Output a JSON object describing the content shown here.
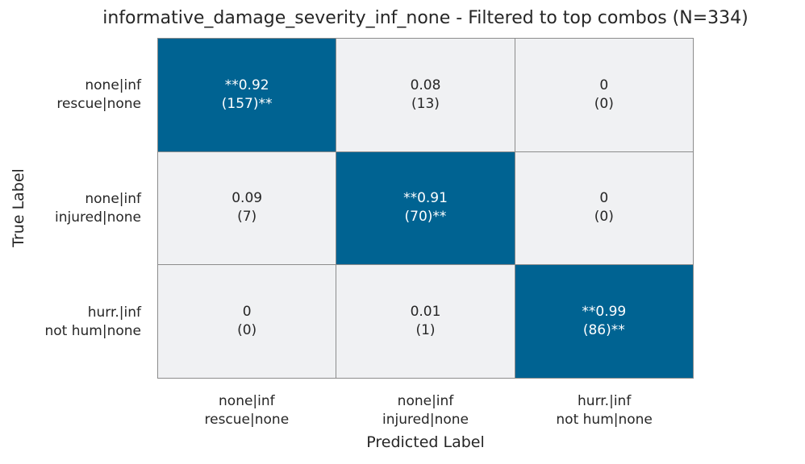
{
  "chart_data": {
    "type": "heatmap",
    "title": "informative_damage_severity_inf_none - Filtered to top combos (N=334)",
    "xlabel": "Predicted Label",
    "ylabel": "True Label",
    "row_labels": [
      [
        "none|inf",
        "rescue|none"
      ],
      [
        "none|inf",
        "injured|none"
      ],
      [
        "hurr.|inf",
        "not hum|none"
      ]
    ],
    "col_labels": [
      [
        "none|inf",
        "rescue|none"
      ],
      [
        "none|inf",
        "injured|none"
      ],
      [
        "hurr.|inf",
        "not hum|none"
      ]
    ],
    "cells": [
      [
        {
          "value": 0.92,
          "count": 157,
          "line1": "**0.92",
          "line2": "(157)**"
        },
        {
          "value": 0.08,
          "count": 13,
          "line1": "0.08",
          "line2": "(13)"
        },
        {
          "value": 0,
          "count": 0,
          "line1": "0",
          "line2": "(0)"
        }
      ],
      [
        {
          "value": 0.09,
          "count": 7,
          "line1": "0.09",
          "line2": "(7)"
        },
        {
          "value": 0.91,
          "count": 70,
          "line1": "**0.91",
          "line2": "(70)**"
        },
        {
          "value": 0,
          "count": 0,
          "line1": "0",
          "line2": "(0)"
        }
      ],
      [
        {
          "value": 0,
          "count": 0,
          "line1": "0",
          "line2": "(0)"
        },
        {
          "value": 0.01,
          "count": 1,
          "line1": "0.01",
          "line2": "(1)"
        },
        {
          "value": 0.99,
          "count": 86,
          "line1": "**0.99",
          "line2": "(86)**"
        }
      ]
    ],
    "colors": {
      "high": "#006392",
      "low": "#f0f1f3",
      "cell_border": "#8c8c8c"
    }
  }
}
